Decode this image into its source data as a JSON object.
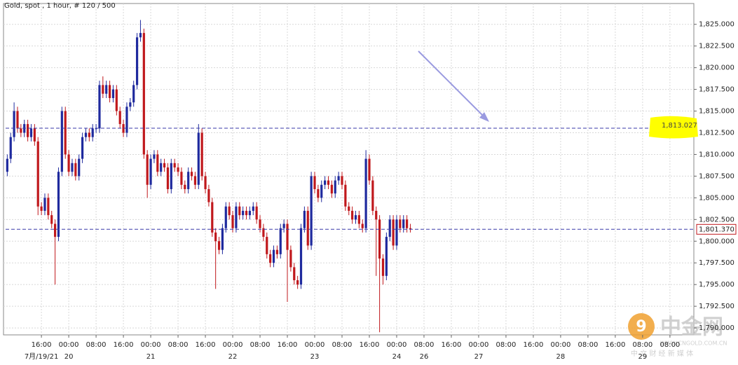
{
  "chart_data": {
    "type": "candlestick",
    "title": "Gold, spot , 1 hour, # 120 / 500",
    "up_color": "#1f2a9e",
    "down_color": "#c0181c",
    "grid": true,
    "xlim": [
      4.9,
      207
    ],
    "ylim": [
      1789.2,
      1827.4
    ],
    "yticks": [
      {
        "value": 1790,
        "label": "1,790.000"
      },
      {
        "value": 1792.5,
        "label": "1,792.500"
      },
      {
        "value": 1795,
        "label": "1,795.000"
      },
      {
        "value": 1797.5,
        "label": "1,797.500"
      },
      {
        "value": 1800,
        "label": "1,800.000"
      },
      {
        "value": 1802.5,
        "label": "1,802.500"
      },
      {
        "value": 1805,
        "label": "1,805.000"
      },
      {
        "value": 1807.5,
        "label": "1,807.500"
      },
      {
        "value": 1810,
        "label": "1,810.000"
      },
      {
        "value": 1812.5,
        "label": "1,812.500"
      },
      {
        "value": 1815,
        "label": "1,815.000"
      },
      {
        "value": 1817.5,
        "label": "1,817.500"
      },
      {
        "value": 1820,
        "label": "1,820.000"
      },
      {
        "value": 1822.5,
        "label": "1,822.500"
      },
      {
        "value": 1825,
        "label": "1,825.000"
      }
    ],
    "xticks": [
      {
        "value": 16,
        "label": "16:00"
      },
      {
        "value": 24,
        "label": "00:00"
      },
      {
        "value": 32,
        "label": "08:00"
      },
      {
        "value": 40,
        "label": "16:00"
      },
      {
        "value": 48,
        "label": "00:00"
      },
      {
        "value": 56,
        "label": "08:00"
      },
      {
        "value": 64,
        "label": "16:00"
      },
      {
        "value": 72,
        "label": "00:00"
      },
      {
        "value": 80,
        "label": "08:00"
      },
      {
        "value": 88,
        "label": "16:00"
      },
      {
        "value": 96,
        "label": "00:00"
      },
      {
        "value": 104,
        "label": "08:00"
      },
      {
        "value": 112,
        "label": "16:00"
      },
      {
        "value": 120,
        "label": "00:00"
      },
      {
        "value": 128,
        "label": "08:00"
      },
      {
        "value": 136,
        "label": "16:00"
      },
      {
        "value": 144,
        "label": "00:00"
      },
      {
        "value": 152,
        "label": "08:00"
      },
      {
        "value": 160,
        "label": "16:00"
      },
      {
        "value": 168,
        "label": "00:00"
      },
      {
        "value": 176,
        "label": "08:00"
      },
      {
        "value": 184,
        "label": "16:00"
      },
      {
        "value": 192,
        "label": "08:00"
      },
      {
        "value": 200,
        "label": "08:00"
      }
    ],
    "x_date_ticks": [
      {
        "value": 16,
        "label": "7月/19/21"
      },
      {
        "value": 24,
        "label": "20"
      },
      {
        "value": 48,
        "label": "21"
      },
      {
        "value": 72,
        "label": "22"
      },
      {
        "value": 96,
        "label": "23"
      },
      {
        "value": 120,
        "label": "24"
      },
      {
        "value": 128,
        "label": "26"
      },
      {
        "value": 144,
        "label": "27"
      },
      {
        "value": 168,
        "label": "28"
      },
      {
        "value": 192,
        "label": "29"
      }
    ],
    "x": [
      6,
      7,
      8,
      9,
      10,
      11,
      12,
      13,
      14,
      15,
      16,
      17,
      18,
      19,
      20,
      21,
      22,
      23,
      24,
      25,
      26,
      27,
      28,
      29,
      30,
      31,
      32,
      33,
      34,
      35,
      36,
      37,
      38,
      39,
      40,
      41,
      42,
      43,
      44,
      45,
      46,
      47,
      48,
      49,
      50,
      51,
      52,
      53,
      54,
      55,
      56,
      57,
      58,
      59,
      60,
      61,
      62,
      63,
      64,
      65,
      66,
      67,
      68,
      69,
      70,
      71,
      72,
      73,
      74,
      75,
      76,
      77,
      78,
      79,
      80,
      81,
      82,
      83,
      84,
      85,
      86,
      87,
      88,
      89,
      90,
      91,
      92,
      93,
      94,
      95,
      96,
      97,
      98,
      99,
      100,
      101,
      102,
      103,
      104,
      105,
      106,
      107,
      108,
      109,
      110,
      111,
      112,
      113,
      114,
      115,
      116,
      117,
      118,
      119,
      120,
      121,
      122,
      123,
      124
    ],
    "open": [
      1808,
      1809.5,
      1812,
      1815,
      1813,
      1812.5,
      1813.5,
      1812,
      1813,
      1811.5,
      1804,
      1803.5,
      1805,
      1803,
      1802,
      1800.5,
      1808,
      1815,
      1810,
      1808,
      1809,
      1807.5,
      1809.5,
      1812,
      1812.5,
      1812,
      1813,
      1813,
      1818,
      1817,
      1818,
      1816.5,
      1817.5,
      1815,
      1813.5,
      1812.5,
      1815.5,
      1816,
      1818,
      1823.5,
      1824,
      1810,
      1806.5,
      1809.5,
      1810,
      1808,
      1809,
      1808.5,
      1806,
      1809,
      1808.5,
      1808,
      1806.5,
      1806,
      1808,
      1807.5,
      1806.5,
      1812.5,
      1807.5,
      1806,
      1804.5,
      1801,
      1800,
      1799,
      1801.5,
      1804,
      1803,
      1801.5,
      1804,
      1803,
      1803.5,
      1803,
      1803.5,
      1804,
      1802.5,
      1801.5,
      1800.5,
      1798.5,
      1797.5,
      1799,
      1798.5,
      1801.5,
      1802,
      1799,
      1797,
      1795.5,
      1795,
      1801.5,
      1803.5,
      1799.5,
      1807.5,
      1806,
      1805,
      1806.5,
      1807,
      1806.5,
      1805.5,
      1807,
      1807.5,
      1806.5,
      1804,
      1803.5,
      1802.5,
      1803,
      1802,
      1801.5,
      1809.5,
      1807,
      1803.5,
      1802.5,
      1798,
      1796,
      1800.5,
      1802.5,
      1799.5,
      1802.5,
      1801.5,
      1802.5,
      1801.5
    ],
    "high": [
      1810,
      1812.5,
      1816,
      1815.5,
      1813.5,
      1814,
      1814,
      1813.5,
      1813.5,
      1812,
      1804.5,
      1805.5,
      1805.5,
      1803.5,
      1802.5,
      1808.5,
      1815.5,
      1815.5,
      1810.5,
      1809.5,
      1809.5,
      1810,
      1812.5,
      1813,
      1813,
      1813.5,
      1813.5,
      1818.5,
      1819,
      1818.5,
      1818.5,
      1818,
      1818,
      1815.5,
      1814,
      1816,
      1816.5,
      1818.5,
      1824,
      1825.5,
      1824.5,
      1810.5,
      1810,
      1810.5,
      1810.5,
      1809.5,
      1809.5,
      1809,
      1809.5,
      1809.5,
      1809,
      1808.5,
      1807,
      1808.5,
      1808.5,
      1808,
      1813.5,
      1813,
      1808,
      1806.5,
      1805,
      1801.5,
      1800.5,
      1802,
      1804.5,
      1804.5,
      1803.5,
      1804.5,
      1804.5,
      1804,
      1804,
      1804,
      1804.5,
      1804.5,
      1803,
      1802,
      1801,
      1799,
      1799.5,
      1799.5,
      1802,
      1802.5,
      1802.5,
      1799.5,
      1797.5,
      1796,
      1802,
      1804,
      1804,
      1808,
      1808,
      1806.5,
      1807,
      1807.5,
      1807.5,
      1807,
      1807.5,
      1808,
      1808,
      1807,
      1804.5,
      1804,
      1803.5,
      1803.5,
      1802.5,
      1810.5,
      1810,
      1807.5,
      1804,
      1803,
      1798.5,
      1801,
      1803,
      1803,
      1803,
      1803,
      1803,
      1803,
      1802
    ],
    "low": [
      1807.5,
      1809,
      1811.5,
      1812.5,
      1812,
      1812,
      1811.5,
      1811.5,
      1811,
      1803,
      1803,
      1803,
      1802.5,
      1801.5,
      1795,
      1800,
      1807.5,
      1809.5,
      1807.5,
      1807.5,
      1807,
      1807,
      1809,
      1811.5,
      1811.5,
      1811.5,
      1812.5,
      1812.5,
      1816.5,
      1816.5,
      1816,
      1816,
      1814.5,
      1813,
      1812,
      1812,
      1815,
      1815.5,
      1817.5,
      1823,
      1809.5,
      1805,
      1806,
      1809,
      1807.5,
      1807.5,
      1808,
      1805.5,
      1805.5,
      1808,
      1807.5,
      1806,
      1805.5,
      1805.5,
      1807,
      1806,
      1806,
      1807,
      1805.5,
      1804,
      1800.5,
      1794.5,
      1798.5,
      1798.5,
      1801,
      1802.5,
      1801,
      1801,
      1802.5,
      1802.5,
      1802.5,
      1802.5,
      1803,
      1802,
      1801,
      1800,
      1798,
      1797,
      1797,
      1798,
      1798,
      1801,
      1793,
      1796.5,
      1795,
      1794.5,
      1794.5,
      1801,
      1799,
      1799,
      1805.5,
      1804.5,
      1804.5,
      1806,
      1806,
      1805,
      1805,
      1806.5,
      1806,
      1803.5,
      1803,
      1802,
      1802,
      1801.5,
      1801,
      1801,
      1806.5,
      1803,
      1796,
      1789.5,
      1795,
      1795.5,
      1800,
      1799,
      1799,
      1801,
      1801,
      1801,
      1801
    ],
    "close": [
      1809.5,
      1812,
      1815,
      1813,
      1812.5,
      1813.5,
      1812,
      1813,
      1811.5,
      1804,
      1803.5,
      1805,
      1803,
      1802,
      1800.5,
      1808,
      1815,
      1810,
      1808,
      1809,
      1807.5,
      1809.5,
      1812,
      1812.5,
      1812,
      1813,
      1813,
      1818,
      1817,
      1818,
      1816.5,
      1817.5,
      1815,
      1813.5,
      1812.5,
      1815.5,
      1816,
      1818,
      1823.5,
      1824,
      1810,
      1806.5,
      1809.5,
      1810,
      1808,
      1809,
      1808.5,
      1806,
      1809,
      1808.5,
      1808,
      1806.5,
      1806,
      1808,
      1807.5,
      1806.5,
      1812.5,
      1807.5,
      1806,
      1804.5,
      1801,
      1800,
      1799,
      1801.5,
      1804,
      1803,
      1801.5,
      1804,
      1803,
      1803.5,
      1803,
      1803.5,
      1804,
      1802.5,
      1801.5,
      1800.5,
      1798.5,
      1797.5,
      1799,
      1798.5,
      1801.5,
      1802,
      1799,
      1797,
      1795.5,
      1795,
      1801.5,
      1803.5,
      1799.5,
      1807.5,
      1806,
      1805,
      1806.5,
      1807,
      1806.5,
      1805.5,
      1807,
      1807.5,
      1806.5,
      1804,
      1803.5,
      1802.5,
      1803,
      1802,
      1801.5,
      1809.5,
      1807,
      1803.5,
      1802.5,
      1798,
      1796,
      1800.5,
      1802.5,
      1799.5,
      1802.5,
      1801.5,
      1802.5,
      1801.5,
      1801.37
    ],
    "level_lines": [
      {
        "value": 1813.027,
        "label": "1,813.027",
        "highlight": "#ffff00"
      },
      {
        "value": 1801.37,
        "label": "1,801.370"
      }
    ],
    "line_color": "#3a3aa8"
  },
  "watermark": {
    "logo": "中金网",
    "url": "WWW.CNGOLD.COM.CN",
    "tagline": "中 文 财 经 新 媒 体"
  }
}
